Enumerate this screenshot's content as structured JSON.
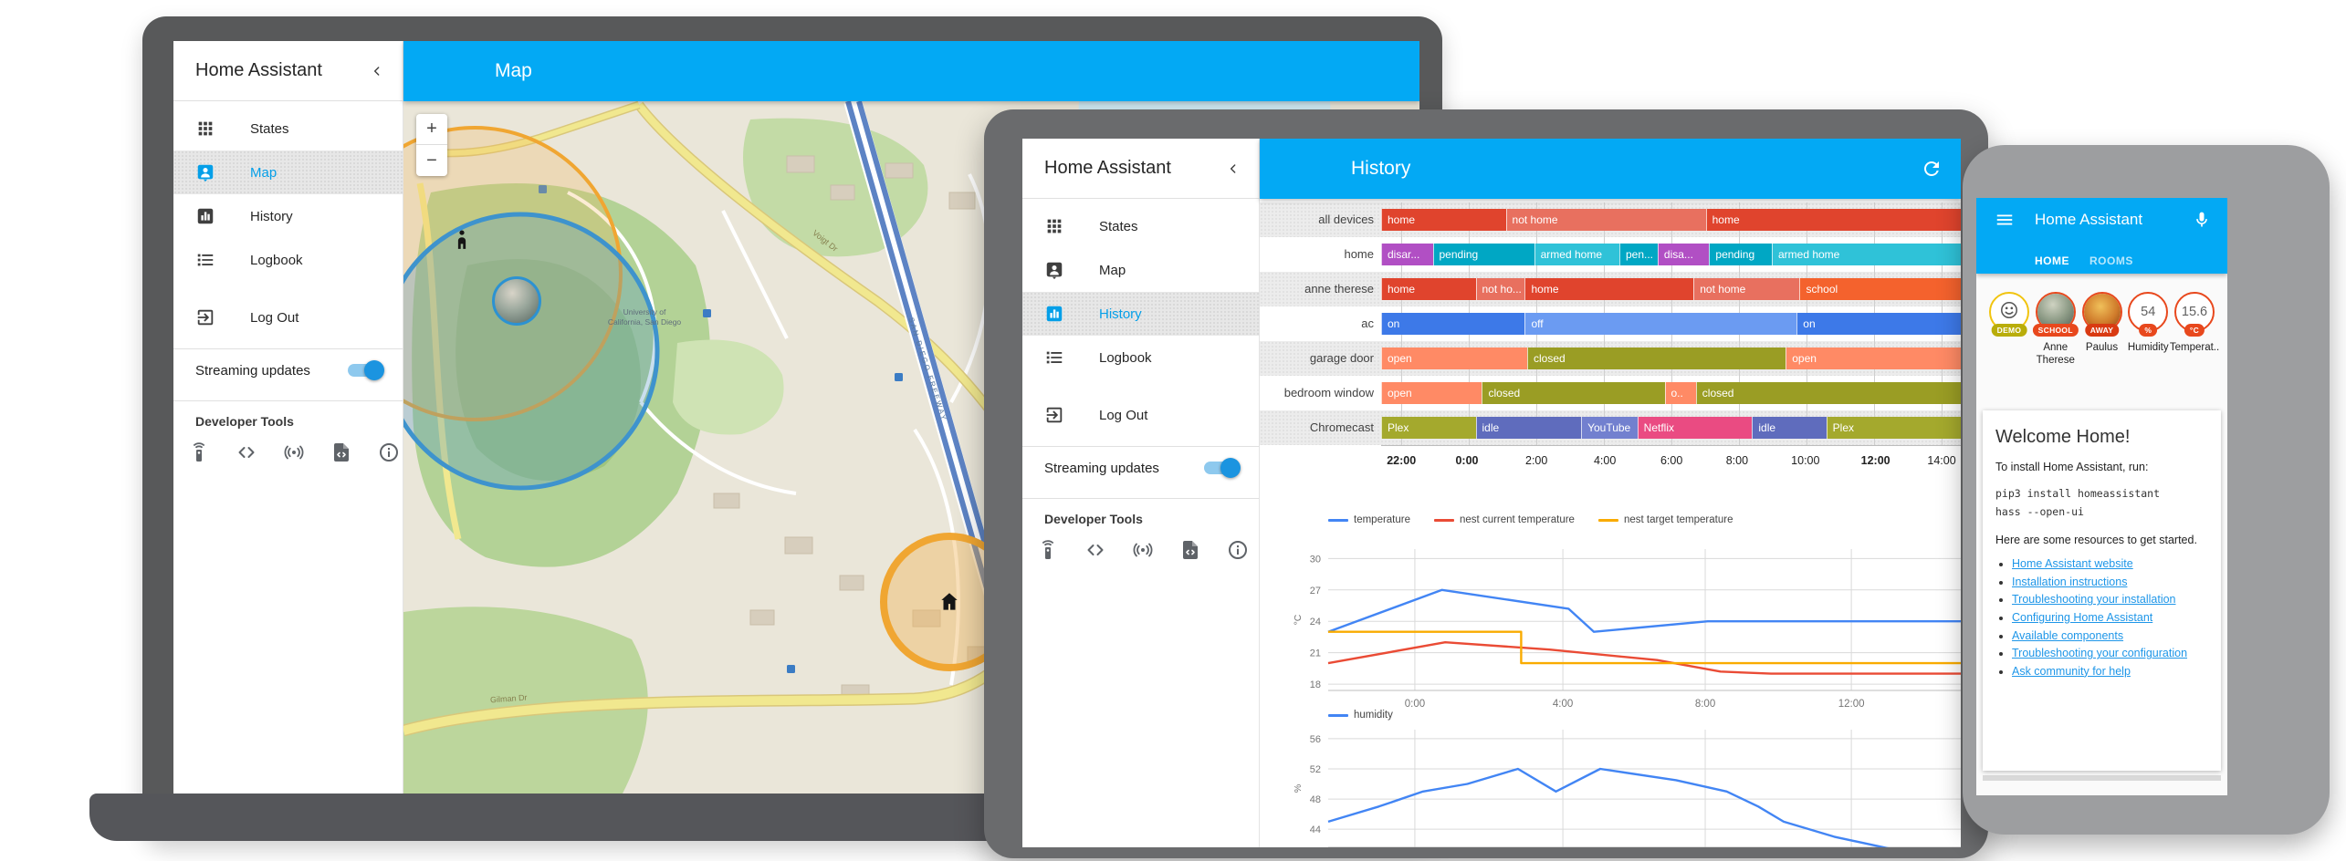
{
  "app": {
    "accent_color": "#03a9f4",
    "sidebar": {
      "title": "Home Assistant",
      "items": [
        {
          "label": "States",
          "icon": "grid-icon"
        },
        {
          "label": "Map",
          "icon": "account-location-icon"
        },
        {
          "label": "History",
          "icon": "chart-bar-icon"
        },
        {
          "label": "Logbook",
          "icon": "list-icon"
        },
        {
          "label": "Log Out",
          "icon": "exit-icon"
        }
      ],
      "streaming_label": "Streaming updates",
      "streaming_on": true,
      "dev_tools_label": "Developer Tools",
      "dev_tool_icons": [
        "remote-icon",
        "code-tags-icon",
        "access-point-icon",
        "file-code-icon",
        "information-icon"
      ]
    }
  },
  "laptop": {
    "appbar_title": "Map",
    "active_item": "Map",
    "map": {
      "zoom_in_label": "+",
      "zoom_out_label": "−",
      "labels": [
        {
          "text": "University of California, San Diego"
        },
        {
          "text": "Gilman Dr"
        },
        {
          "text": "Voigt Dr"
        },
        {
          "text": "SAN DIEGO FREEWAY"
        }
      ]
    }
  },
  "tablet": {
    "appbar_title": "History",
    "active_item": "History"
  },
  "phone": {
    "appbar_title": "Home Assistant",
    "tabs": [
      {
        "label": "HOME",
        "active": true
      },
      {
        "label": "ROOMS",
        "active": false
      }
    ],
    "badges": [
      {
        "kind": "icon",
        "icon": "smiley-icon",
        "pill": "DEMO",
        "pill_color": "#b9ad0a",
        "ring": "#f1c40f",
        "label": ""
      },
      {
        "kind": "avatar",
        "avatar": "anne",
        "pill": "SCHOOL",
        "pill_color": "#e8481d",
        "ring": "#e8481d",
        "label": "Anne Therese"
      },
      {
        "kind": "avatar",
        "avatar": "paulus",
        "pill": "AWAY",
        "pill_color": "#d93a12",
        "ring": "#e8481d",
        "label": "Paulus"
      },
      {
        "kind": "value",
        "value": "54",
        "pill": "%",
        "pill_color": "#e8481d",
        "ring": "#e8481d",
        "label": "Humidity"
      },
      {
        "kind": "value",
        "value": "15.6",
        "pill": "°C",
        "pill_color": "#e8481d",
        "ring": "#e8481d",
        "label": "Temperat.."
      }
    ],
    "welcome": {
      "heading": "Welcome Home!",
      "intro": "To install Home Assistant, run:",
      "code_lines": [
        "pip3 install homeassistant",
        "hass --open-ui"
      ],
      "resources_intro": "Here are some resources to get started.",
      "links": [
        "Home Assistant website",
        "Installation instructions",
        "Troubleshooting your installation",
        "Configuring Home Assistant",
        "Available components",
        "Troubleshooting your configuration",
        "Ask community for help"
      ]
    }
  },
  "chart_data": [
    {
      "type": "timeline",
      "title": "History",
      "rows": [
        {
          "name": "all devices",
          "segments": [
            {
              "label": "home",
              "color": "#e0442d",
              "from": 0,
              "to": 0.215
            },
            {
              "label": "not home",
              "color": "#e8705f",
              "from": 0.215,
              "to": 0.56
            },
            {
              "label": "home",
              "color": "#e0442d",
              "from": 0.56,
              "to": 1
            }
          ]
        },
        {
          "name": "home",
          "segments": [
            {
              "label": "disar...",
              "color": "#b14fc4",
              "from": 0,
              "to": 0.089
            },
            {
              "label": "pending",
              "color": "#00a7c4",
              "from": 0.089,
              "to": 0.264
            },
            {
              "label": "armed home",
              "color": "#2fc2d8",
              "from": 0.264,
              "to": 0.411
            },
            {
              "label": "pen...",
              "color": "#00a7c4",
              "from": 0.411,
              "to": 0.477
            },
            {
              "label": "disa...",
              "color": "#b14fc4",
              "from": 0.477,
              "to": 0.566
            },
            {
              "label": "pending",
              "color": "#00a7c4",
              "from": 0.566,
              "to": 0.674
            },
            {
              "label": "armed home",
              "color": "#2fc2d8",
              "from": 0.674,
              "to": 1
            }
          ]
        },
        {
          "name": "anne therese",
          "segments": [
            {
              "label": "home",
              "color": "#e0442d",
              "from": 0,
              "to": 0.163
            },
            {
              "label": "not ho...",
              "color": "#e8705f",
              "from": 0.163,
              "to": 0.248
            },
            {
              "label": "home",
              "color": "#e0442d",
              "from": 0.248,
              "to": 0.539
            },
            {
              "label": "not home",
              "color": "#e8705f",
              "from": 0.539,
              "to": 0.722
            },
            {
              "label": "school",
              "color": "#f4622d",
              "from": 0.722,
              "to": 1
            }
          ]
        },
        {
          "name": "ac",
          "segments": [
            {
              "label": "on",
              "color": "#3d79e8",
              "from": 0,
              "to": 0.248
            },
            {
              "label": "off",
              "color": "#6b9bf2",
              "from": 0.248,
              "to": 0.717
            },
            {
              "label": "on",
              "color": "#3d79e8",
              "from": 0.717,
              "to": 1
            }
          ]
        },
        {
          "name": "garage door",
          "segments": [
            {
              "label": "open",
              "color": "#ff8a65",
              "from": 0,
              "to": 0.252
            },
            {
              "label": "closed",
              "color": "#9a9d24",
              "from": 0.252,
              "to": 0.698
            },
            {
              "label": "open",
              "color": "#ff8a65",
              "from": 0.698,
              "to": 1
            }
          ]
        },
        {
          "name": "bedroom window",
          "segments": [
            {
              "label": "open",
              "color": "#ff8a65",
              "from": 0,
              "to": 0.174
            },
            {
              "label": "closed",
              "color": "#9a9d24",
              "from": 0.174,
              "to": 0.489
            },
            {
              "label": "o..",
              "color": "#ff8a65",
              "from": 0.489,
              "to": 0.543
            },
            {
              "label": "closed",
              "color": "#9a9d24",
              "from": 0.543,
              "to": 1
            }
          ]
        },
        {
          "name": "Chromecast",
          "segments": [
            {
              "label": "Plex",
              "color": "#a4a92d",
              "from": 0,
              "to": 0.163
            },
            {
              "label": "idle",
              "color": "#5f6cbd",
              "from": 0.163,
              "to": 0.345
            },
            {
              "label": "YouTube",
              "color": "#7280cf",
              "from": 0.345,
              "to": 0.442
            },
            {
              "label": "Netflix",
              "color": "#ea4b82",
              "from": 0.442,
              "to": 0.64
            },
            {
              "label": "idle",
              "color": "#5f6cbd",
              "from": 0.64,
              "to": 0.768
            },
            {
              "label": "Plex",
              "color": "#a4a92d",
              "from": 0.768,
              "to": 1
            }
          ]
        }
      ],
      "axis": [
        {
          "label": "22:00",
          "pos": 0.035,
          "bold": true
        },
        {
          "label": "0:00",
          "pos": 0.148,
          "bold": true
        },
        {
          "label": "2:00",
          "pos": 0.268,
          "bold": false
        },
        {
          "label": "4:00",
          "pos": 0.386,
          "bold": false
        },
        {
          "label": "6:00",
          "pos": 0.501,
          "bold": false
        },
        {
          "label": "8:00",
          "pos": 0.614,
          "bold": false
        },
        {
          "label": "10:00",
          "pos": 0.732,
          "bold": false
        },
        {
          "label": "12:00",
          "pos": 0.853,
          "bold": true
        },
        {
          "label": "14:00",
          "pos": 0.967,
          "bold": false
        }
      ]
    },
    {
      "type": "line",
      "ylabel": "°C",
      "ylim": [
        17.4,
        30.9
      ],
      "yticks": [
        30,
        27,
        24,
        21,
        18
      ],
      "xticks": [
        {
          "label": "0:00",
          "pos": 0.137
        },
        {
          "label": "4:00",
          "pos": 0.371
        },
        {
          "label": "8:00",
          "pos": 0.596
        },
        {
          "label": "12:00",
          "pos": 0.827
        }
      ],
      "legend_position": "top",
      "grid": true,
      "series": [
        {
          "name": "temperature",
          "color": "#4285f4",
          "points": [
            [
              0,
              23
            ],
            [
              0.18,
              27
            ],
            [
              0.38,
              25.2
            ],
            [
              0.42,
              23
            ],
            [
              0.6,
              24
            ],
            [
              1,
              24
            ]
          ]
        },
        {
          "name": "nest current temperature",
          "color": "#ea4b35",
          "points": [
            [
              0,
              20
            ],
            [
              0.185,
              22
            ],
            [
              0.35,
              21.3
            ],
            [
              0.52,
              20.3
            ],
            [
              0.62,
              19.2
            ],
            [
              0.7,
              19
            ],
            [
              1,
              19
            ]
          ]
        },
        {
          "name": "nest target temperature",
          "color": "#f9ab00",
          "points": [
            [
              0,
              23
            ],
            [
              0.305,
              23
            ],
            [
              0.305,
              20
            ],
            [
              1,
              20
            ]
          ]
        }
      ]
    },
    {
      "type": "line",
      "ylabel": "%",
      "ylim": [
        41.6,
        57.2
      ],
      "yticks": [
        56,
        52,
        48,
        44
      ],
      "xticks": [
        {
          "label": "",
          "pos": 0.137
        },
        {
          "label": "",
          "pos": 0.371
        },
        {
          "label": "",
          "pos": 0.596
        },
        {
          "label": "",
          "pos": 0.827
        }
      ],
      "legend_position": "top",
      "grid": true,
      "series": [
        {
          "name": "humidity",
          "color": "#4285f4",
          "points": [
            [
              0,
              45
            ],
            [
              0.08,
              47
            ],
            [
              0.15,
              49
            ],
            [
              0.22,
              50
            ],
            [
              0.3,
              52
            ],
            [
              0.36,
              49
            ],
            [
              0.43,
              52
            ],
            [
              0.55,
              50.5
            ],
            [
              0.63,
              49
            ],
            [
              0.68,
              47
            ],
            [
              0.72,
              45
            ],
            [
              0.8,
              43
            ],
            [
              0.9,
              41.2
            ]
          ]
        }
      ]
    }
  ]
}
